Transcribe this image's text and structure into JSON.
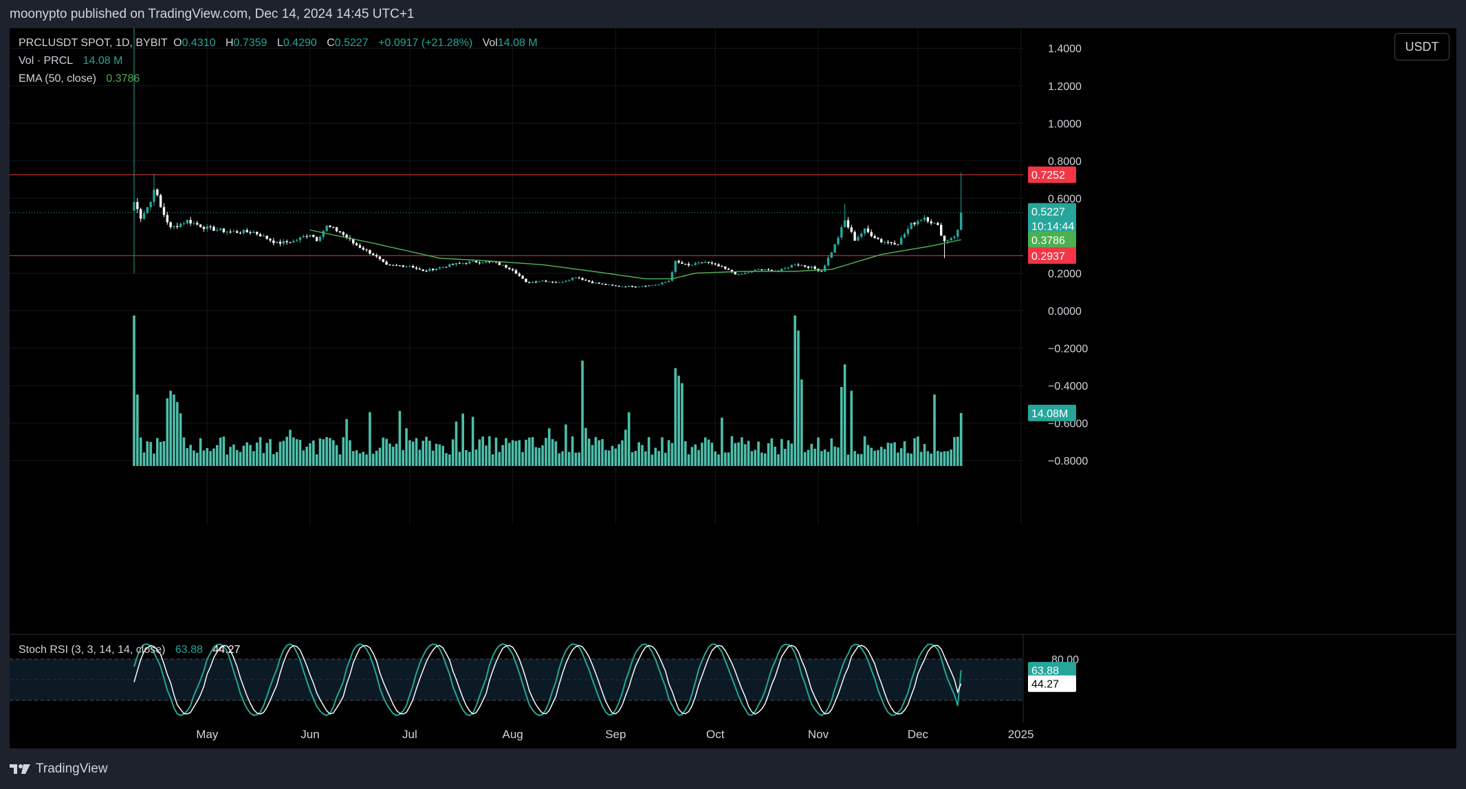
{
  "header": {
    "published_line": "moonypto published on TradingView.com, Dec 14, 2024 14:45 UTC+1"
  },
  "legend": {
    "symbol": "PRCLUSDT SPOT, 1D, BYBIT",
    "ohlc": [
      {
        "label": "O",
        "value": "0.4310"
      },
      {
        "label": "H",
        "value": "0.7359"
      },
      {
        "label": "L",
        "value": "0.4290"
      },
      {
        "label": "C",
        "value": "0.5227"
      }
    ],
    "change": "+0.0917 (+21.28%)",
    "vol_label": "Vol",
    "vol_value": "14.08 M",
    "volume_indicator_label": "Vol · PRCL",
    "volume_indicator_value": "14.08 M",
    "ema_label": "EMA (50, close)",
    "ema_value": "0.3786",
    "stoch_label": "Stoch RSI (3, 3, 14, 14, close)",
    "stoch_k": "63.88",
    "stoch_d": "44.27"
  },
  "currency_button": "USDT",
  "footer": {
    "brand": "TradingView"
  },
  "colors": {
    "up": "#26a69a",
    "candle": "#ffffff",
    "ema": "#4caf50",
    "resistance": "#f23645",
    "volume": "#4dbfab",
    "stoch_k": "#26a69a",
    "stoch_d": "#ffffff",
    "price_badge": "#26a69a",
    "ema_badge": "#4caf50",
    "level_badge": "#f23645"
  },
  "chart_data": {
    "type": "candlestick",
    "symbol": "PRCLUSDT",
    "price_axis": {
      "ticks": [
        "1.4000",
        "1.2000",
        "1.0000",
        "0.8000",
        "0.6000",
        "0.2000",
        "0.0000",
        "−0.2000",
        "−0.4000",
        "−0.6000",
        "−0.8000"
      ],
      "tick_values": [
        1.4,
        1.2,
        1.0,
        0.8,
        0.6,
        0.2,
        0.0,
        -0.2,
        -0.4,
        -0.6,
        -0.8
      ],
      "range": [
        -0.8,
        1.4
      ]
    },
    "time_axis": {
      "labels": [
        "May",
        "Jun",
        "Jul",
        "Aug",
        "Sep",
        "Oct",
        "Nov",
        "Dec",
        "2025"
      ],
      "label_dates": [
        "2024-05-01",
        "2024-06-01",
        "2024-07-01",
        "2024-08-01",
        "2024-09-01",
        "2024-10-01",
        "2024-11-01",
        "2024-12-01",
        "2025-01-01"
      ],
      "first_candle": "2024-04-09",
      "last_candle": "2024-12-14"
    },
    "horizontal_levels": [
      {
        "label": "0.7252",
        "value": 0.7252
      },
      {
        "label": "0.2937",
        "value": 0.2937
      }
    ],
    "badges": {
      "last_price": "0.5227",
      "countdown": "10:14:44",
      "ema": "0.3786",
      "volume": "14.08M"
    },
    "close_anchors": [
      [
        "2024-04-09",
        0.58
      ],
      [
        "2024-04-11",
        0.5
      ],
      [
        "2024-04-14",
        0.58
      ],
      [
        "2024-04-15",
        0.66
      ],
      [
        "2024-04-17",
        0.55
      ],
      [
        "2024-04-20",
        0.44
      ],
      [
        "2024-04-25",
        0.48
      ],
      [
        "2024-05-01",
        0.44
      ],
      [
        "2024-05-08",
        0.42
      ],
      [
        "2024-05-15",
        0.42
      ],
      [
        "2024-05-22",
        0.36
      ],
      [
        "2024-05-27",
        0.37
      ],
      [
        "2024-06-01",
        0.41
      ],
      [
        "2024-06-03",
        0.38
      ],
      [
        "2024-06-06",
        0.45
      ],
      [
        "2024-06-10",
        0.42
      ],
      [
        "2024-06-14",
        0.36
      ],
      [
        "2024-06-20",
        0.3
      ],
      [
        "2024-06-24",
        0.24
      ],
      [
        "2024-07-01",
        0.24
      ],
      [
        "2024-07-05",
        0.21
      ],
      [
        "2024-07-10",
        0.23
      ],
      [
        "2024-07-15",
        0.25
      ],
      [
        "2024-07-20",
        0.26
      ],
      [
        "2024-07-26",
        0.26
      ],
      [
        "2024-08-01",
        0.22
      ],
      [
        "2024-08-05",
        0.15
      ],
      [
        "2024-08-10",
        0.16
      ],
      [
        "2024-08-15",
        0.15
      ],
      [
        "2024-08-20",
        0.18
      ],
      [
        "2024-08-25",
        0.15
      ],
      [
        "2024-09-01",
        0.13
      ],
      [
        "2024-09-08",
        0.13
      ],
      [
        "2024-09-14",
        0.14
      ],
      [
        "2024-09-17",
        0.16
      ],
      [
        "2024-09-19",
        0.26
      ],
      [
        "2024-09-23",
        0.24
      ],
      [
        "2024-09-28",
        0.26
      ],
      [
        "2024-10-03",
        0.23
      ],
      [
        "2024-10-08",
        0.19
      ],
      [
        "2024-10-14",
        0.22
      ],
      [
        "2024-10-20",
        0.21
      ],
      [
        "2024-10-25",
        0.25
      ],
      [
        "2024-10-30",
        0.23
      ],
      [
        "2024-11-02",
        0.21
      ],
      [
        "2024-11-06",
        0.35
      ],
      [
        "2024-11-09",
        0.48
      ],
      [
        "2024-11-12",
        0.38
      ],
      [
        "2024-11-15",
        0.43
      ],
      [
        "2024-11-20",
        0.37
      ],
      [
        "2024-11-25",
        0.36
      ],
      [
        "2024-11-29",
        0.46
      ],
      [
        "2024-12-03",
        0.5
      ],
      [
        "2024-12-07",
        0.45
      ],
      [
        "2024-12-09",
        0.37
      ],
      [
        "2024-12-12",
        0.4
      ],
      [
        "2024-12-13",
        0.431
      ],
      [
        "2024-12-14",
        0.5227
      ]
    ],
    "ohlc_last": {
      "open": 0.431,
      "high": 0.7359,
      "low": 0.429,
      "close": 0.5227
    },
    "special_wicks": [
      {
        "date": "2024-04-09",
        "low": 0.2
      },
      {
        "date": "2024-04-15",
        "high": 0.73
      },
      {
        "date": "2024-11-09",
        "high": 0.57
      },
      {
        "date": "2024-12-09",
        "low": 0.28
      }
    ],
    "ema_50": {
      "start": "2024-06-01",
      "anchors": [
        [
          "2024-06-01",
          0.43
        ],
        [
          "2024-06-20",
          0.36
        ],
        [
          "2024-07-10",
          0.28
        ],
        [
          "2024-07-25",
          0.265
        ],
        [
          "2024-08-10",
          0.245
        ],
        [
          "2024-08-25",
          0.21
        ],
        [
          "2024-09-10",
          0.17
        ],
        [
          "2024-09-18",
          0.17
        ],
        [
          "2024-09-25",
          0.2
        ],
        [
          "2024-10-10",
          0.21
        ],
        [
          "2024-10-25",
          0.21
        ],
        [
          "2024-11-05",
          0.22
        ],
        [
          "2024-11-20",
          0.3
        ],
        [
          "2024-12-05",
          0.345
        ],
        [
          "2024-12-14",
          0.3786
        ]
      ]
    },
    "volume": {
      "unit": "M",
      "last": 14.08,
      "spike_dates": [
        [
          "2024-04-09",
          40
        ],
        [
          "2024-04-10",
          19
        ],
        [
          "2024-04-19",
          18
        ],
        [
          "2024-04-20",
          20
        ],
        [
          "2024-04-21",
          19
        ],
        [
          "2024-04-22",
          17
        ],
        [
          "2024-04-23",
          14
        ],
        [
          "2024-08-22",
          28
        ],
        [
          "2024-09-19",
          26
        ],
        [
          "2024-09-20",
          24
        ],
        [
          "2024-09-21",
          22
        ],
        [
          "2024-10-25",
          40
        ],
        [
          "2024-10-26",
          36
        ],
        [
          "2024-10-27",
          23
        ],
        [
          "2024-11-08",
          21
        ],
        [
          "2024-11-09",
          27
        ],
        [
          "2024-11-11",
          20
        ],
        [
          "2024-12-06",
          19
        ],
        [
          "2024-12-14",
          14.08
        ]
      ]
    },
    "stoch_rsi": {
      "k": 63.88,
      "d": 44.27,
      "bands": [
        80,
        20
      ],
      "band_labels": [
        "80.00"
      ]
    }
  }
}
